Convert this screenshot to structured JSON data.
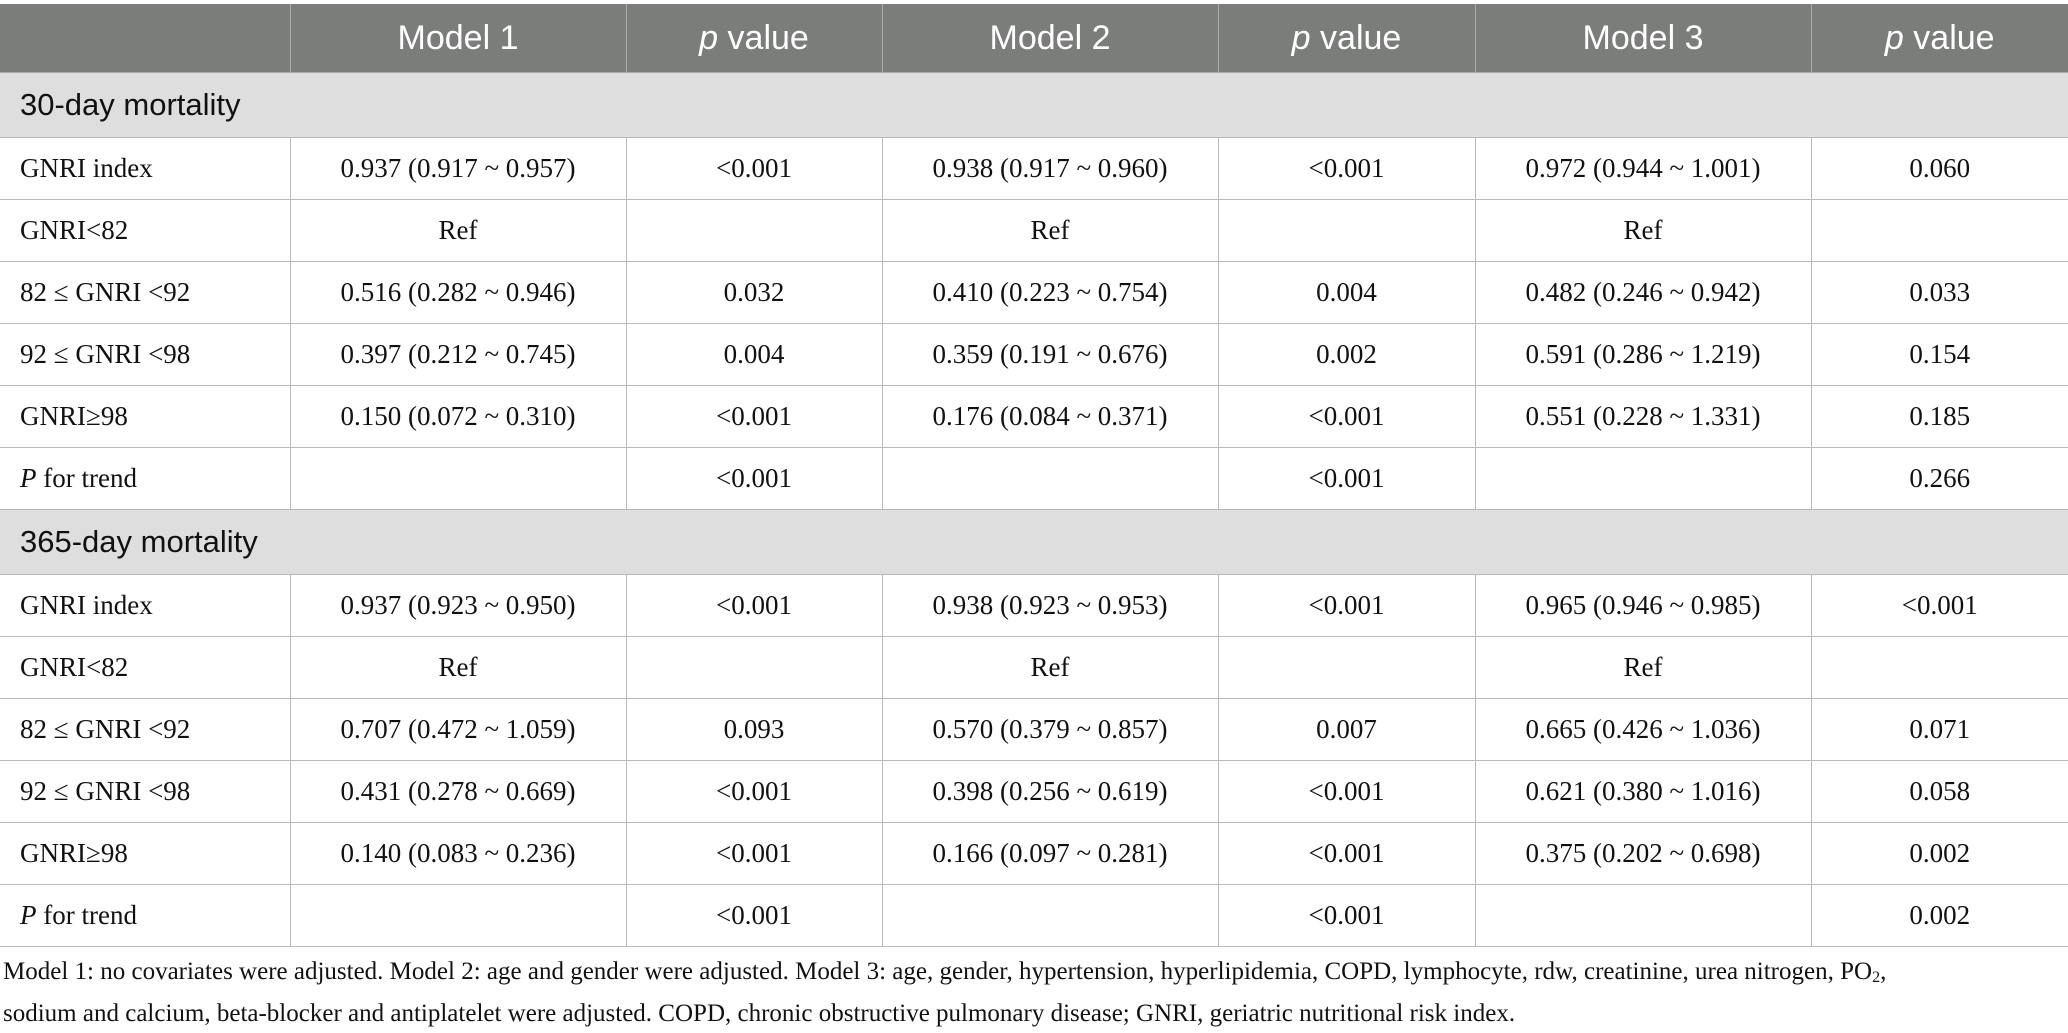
{
  "header": {
    "col0": "",
    "model1": "Model 1",
    "p1_italic": "p",
    "p1_rest": " value",
    "model2": "Model 2",
    "p2_italic": "p",
    "p2_rest": " value",
    "model3": "Model 3",
    "p3_italic": "p",
    "p3_rest": " value"
  },
  "sections": [
    {
      "title": "30-day mortality",
      "rows": [
        {
          "label": "GNRI index",
          "m1": "0.937 (0.917 ~ 0.957)",
          "p1": "<0.001",
          "m2": "0.938 (0.917 ~ 0.960)",
          "p2": "<0.001",
          "m3": "0.972 (0.944 ~ 1.001)",
          "p3": "0.060"
        },
        {
          "label": "GNRI<82",
          "m1": "Ref",
          "p1": "",
          "m2": "Ref",
          "p2": "",
          "m3": "Ref",
          "p3": ""
        },
        {
          "label": "82 ≤ GNRI <92",
          "m1": "0.516 (0.282 ~ 0.946)",
          "p1": "0.032",
          "m2": "0.410 (0.223 ~ 0.754)",
          "p2": "0.004",
          "m3": "0.482 (0.246 ~ 0.942)",
          "p3": "0.033"
        },
        {
          "label": "92 ≤ GNRI <98",
          "m1": "0.397 (0.212 ~ 0.745)",
          "p1": "0.004",
          "m2": "0.359 (0.191 ~ 0.676)",
          "p2": "0.002",
          "m3": "0.591 (0.286 ~ 1.219)",
          "p3": "0.154"
        },
        {
          "label": "GNRI≥98",
          "m1": "0.150 (0.072 ~ 0.310)",
          "p1": "<0.001",
          "m2": "0.176 (0.084 ~ 0.371)",
          "p2": "<0.001",
          "m3": "0.551 (0.228 ~ 1.331)",
          "p3": "0.185"
        },
        {
          "label_italic": "P",
          "label_rest": " for trend",
          "m1": "",
          "p1": "<0.001",
          "m2": "",
          "p2": "<0.001",
          "m3": "",
          "p3": "0.266"
        }
      ]
    },
    {
      "title": "365-day mortality",
      "rows": [
        {
          "label": "GNRI index",
          "m1": "0.937 (0.923 ~ 0.950)",
          "p1": "<0.001",
          "m2": "0.938 (0.923 ~ 0.953)",
          "p2": "<0.001",
          "m3": "0.965 (0.946 ~ 0.985)",
          "p3": "<0.001"
        },
        {
          "label": "GNRI<82",
          "m1": "Ref",
          "p1": "",
          "m2": "Ref",
          "p2": "",
          "m3": "Ref",
          "p3": ""
        },
        {
          "label": "82 ≤ GNRI <92",
          "m1": "0.707 (0.472 ~ 1.059)",
          "p1": "0.093",
          "m2": "0.570 (0.379 ~ 0.857)",
          "p2": "0.007",
          "m3": "0.665 (0.426 ~ 1.036)",
          "p3": "0.071"
        },
        {
          "label": "92 ≤ GNRI <98",
          "m1": "0.431 (0.278 ~ 0.669)",
          "p1": "<0.001",
          "m2": "0.398 (0.256 ~ 0.619)",
          "p2": "<0.001",
          "m3": "0.621 (0.380 ~ 1.016)",
          "p3": "0.058"
        },
        {
          "label": "GNRI≥98",
          "m1": "0.140 (0.083 ~ 0.236)",
          "p1": "<0.001",
          "m2": "0.166 (0.097 ~ 0.281)",
          "p2": "<0.001",
          "m3": "0.375 (0.202 ~ 0.698)",
          "p3": "0.002"
        },
        {
          "label_italic": "P",
          "label_rest": " for trend",
          "m1": "",
          "p1": "<0.001",
          "m2": "",
          "p2": "<0.001",
          "m3": "",
          "p3": "0.002"
        }
      ]
    }
  ],
  "footnote": {
    "line1_a": "Model 1: no covariates were adjusted. Model 2: age and gender were adjusted. Model 3: age, gender, hypertension, hyperlipidemia, COPD, lymphocyte, rdw, creatinine, urea nitrogen, PO",
    "line1_sub": "2",
    "line1_b": ",",
    "line2": "sodium and calcium, beta-blocker and antiplatelet were adjusted. COPD, chronic obstructive pulmonary disease; GNRI, geriatric nutritional risk index."
  }
}
